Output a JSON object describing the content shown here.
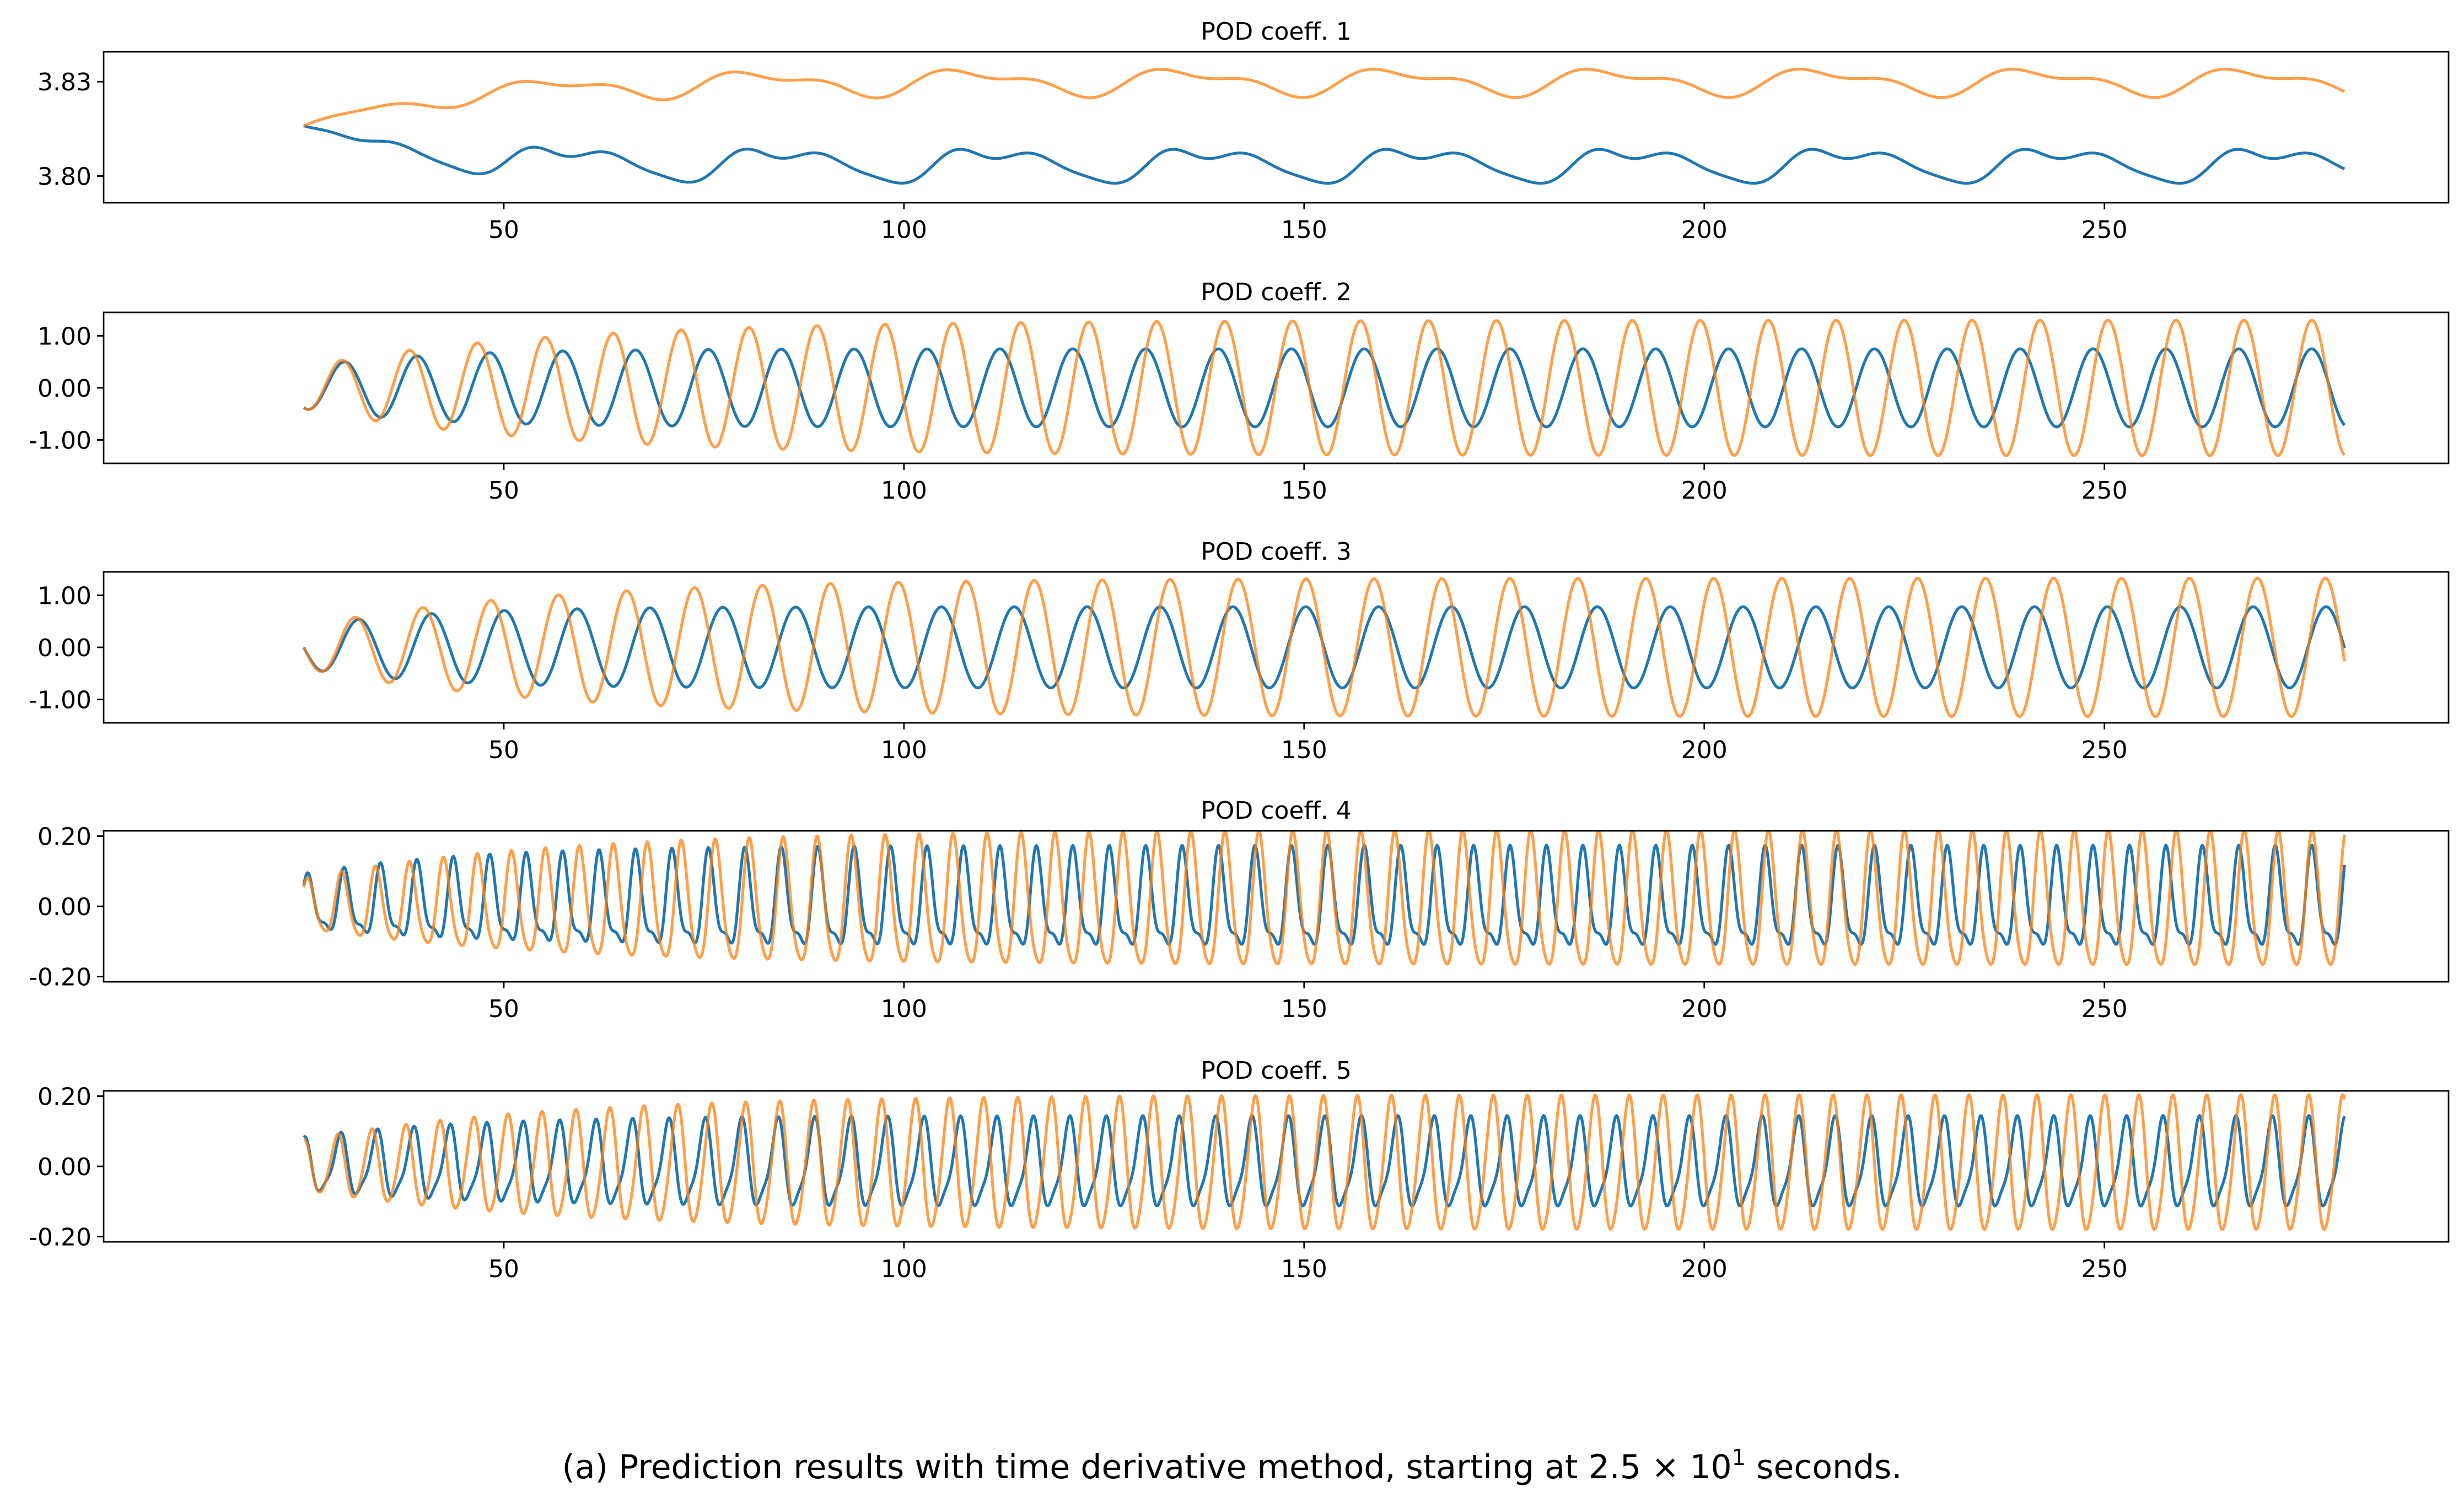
{
  "caption": {
    "before": "(a) Prediction results with time derivative method, starting at 2.5 × 10",
    "exponent": "1",
    "after": " seconds."
  },
  "colors": {
    "series_1": "#1f77b4",
    "series_2": "#ff7f0e"
  },
  "chart_data": [
    {
      "type": "line",
      "title": "POD coeff. 1",
      "xlabel": "",
      "ylabel": "",
      "xlim": [
        0,
        293
      ],
      "ylim": [
        3.7915,
        3.8395
      ],
      "xticks": [
        50,
        100,
        150,
        200,
        250
      ],
      "yticks": [
        3.8,
        3.83
      ],
      "ytick_labels": [
        "3.80",
        "3.83"
      ],
      "x_range": [
        25,
        280
      ],
      "series": [
        {
          "color": "#1f77b4",
          "envelope": "POD coefficient 1, blue series: diverges downward after t≈45, oscillating between about 3.797 and 3.812",
          "model": {
            "offset": 3.8038,
            "terms": [
              [
                0.0045,
                0.236,
                0.0
              ],
              [
                0.002,
                0.472,
                1.2
              ],
              [
                0.001,
                0.708,
                0.5
              ]
            ],
            "t_start": 25,
            "initial": 3.816,
            "blend": 12
          }
        },
        {
          "color": "#ff7f0e",
          "envelope": "POD coefficient 1, orange series: rises after t≈80, oscillating between about 3.824 and 3.836",
          "model": {
            "offset": 3.83,
            "terms": [
              [
                0.0035,
                0.236,
                0.7
              ],
              [
                0.0018,
                0.472,
                2.0
              ]
            ],
            "t_start": 25,
            "initial": 3.816,
            "blend": 18
          }
        }
      ]
    },
    {
      "type": "line",
      "title": "POD coeff. 2",
      "xlabel": "",
      "ylabel": "",
      "xlim": [
        0,
        293
      ],
      "ylim": [
        -1.45,
        1.45
      ],
      "xticks": [
        50,
        100,
        150,
        200,
        250
      ],
      "yticks": [
        -1.0,
        0.0,
        1.0
      ],
      "ytick_labels": [
        "-1.00",
        "0.00",
        "1.00"
      ],
      "x_range": [
        25,
        280
      ],
      "series": [
        {
          "color": "#1f77b4",
          "model": {
            "amp_start": 0.4,
            "amp_end": 0.75,
            "amp_tau": 15,
            "freq": 0.69,
            "phase": -1.9,
            "t_start": 25
          }
        },
        {
          "color": "#ff7f0e",
          "model": {
            "amp_start": 0.4,
            "amp_end": 1.3,
            "amp_tau": 30,
            "freq": 0.74,
            "phase": -1.9,
            "t_start": 25
          }
        }
      ]
    },
    {
      "type": "line",
      "title": "POD coeff. 3",
      "xlabel": "",
      "ylabel": "",
      "xlim": [
        0,
        293
      ],
      "ylim": [
        -1.45,
        1.45
      ],
      "xticks": [
        50,
        100,
        150,
        200,
        250
      ],
      "yticks": [
        -1.0,
        0.0,
        1.0
      ],
      "ytick_labels": [
        "-1.00",
        "0.00",
        "1.00"
      ],
      "x_range": [
        25,
        280
      ],
      "series": [
        {
          "color": "#1f77b4",
          "model": {
            "amp_start": 0.4,
            "amp_end": 0.78,
            "amp_tau": 15,
            "freq": 0.69,
            "phase": 3.14,
            "t_start": 25
          }
        },
        {
          "color": "#ff7f0e",
          "model": {
            "amp_start": 0.4,
            "amp_end": 1.33,
            "amp_tau": 30,
            "freq": 0.74,
            "phase": 3.14,
            "t_start": 25
          }
        }
      ]
    },
    {
      "type": "line",
      "title": "POD coeff. 4",
      "xlabel": "",
      "ylabel": "",
      "xlim": [
        0,
        293
      ],
      "ylim": [
        -0.215,
        0.215
      ],
      "xticks": [
        50,
        100,
        150,
        200,
        250
      ],
      "yticks": [
        -0.2,
        0.0,
        0.2
      ],
      "ytick_labels": [
        "-0.20",
        "0.00",
        "0.20"
      ],
      "x_range": [
        25,
        280
      ],
      "series": [
        {
          "color": "#1f77b4",
          "model": {
            "amp_start": 0.07,
            "amp_end": 0.13,
            "amp_tau": 20,
            "freq": 1.38,
            "phase": 0.8,
            "second": 0.35,
            "t_start": 25
          }
        },
        {
          "color": "#ff7f0e",
          "model": {
            "amp_start": 0.07,
            "amp_end": 0.19,
            "amp_tau": 30,
            "freq": 1.48,
            "phase": 0.8,
            "second": 0.15,
            "t_start": 25
          }
        }
      ]
    },
    {
      "type": "line",
      "title": "POD coeff. 5",
      "xlabel": "",
      "ylabel": "",
      "xlim": [
        0,
        293
      ],
      "ylim": [
        -0.215,
        0.215
      ],
      "xticks": [
        50,
        100,
        150,
        200,
        250
      ],
      "yticks": [
        -0.2,
        0.0,
        0.2
      ],
      "ytick_labels": [
        "-0.20",
        "0.00",
        "0.20"
      ],
      "x_range": [
        25,
        280
      ],
      "series": [
        {
          "color": "#1f77b4",
          "model": {
            "amp_start": 0.07,
            "amp_end": 0.12,
            "amp_tau": 20,
            "freq": 1.38,
            "phase": 1.6,
            "second": 0.25,
            "t_start": 25
          }
        },
        {
          "color": "#ff7f0e",
          "model": {
            "amp_start": 0.07,
            "amp_end": 0.19,
            "amp_tau": 30,
            "freq": 1.48,
            "phase": 1.6,
            "second": 0.1,
            "t_start": 25
          }
        }
      ]
    }
  ]
}
